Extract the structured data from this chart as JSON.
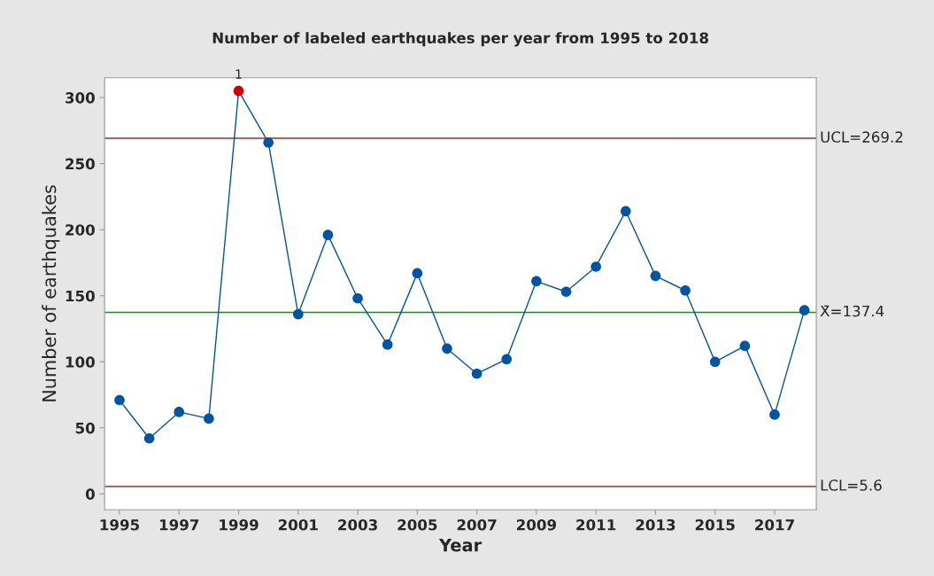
{
  "chart_data": {
    "type": "line",
    "title": "Number of labeled earthquakes per year from 1995 to 2018",
    "xlabel": "Year",
    "ylabel": "Number of earthquakes",
    "x": [
      1995,
      1996,
      1997,
      1998,
      1999,
      2000,
      2001,
      2002,
      2003,
      2004,
      2005,
      2006,
      2007,
      2008,
      2009,
      2010,
      2011,
      2012,
      2013,
      2014,
      2015,
      2016,
      2017,
      2018
    ],
    "series": [
      {
        "color": "#0054a6",
        "marker": "circle",
        "values": [
          71,
          42,
          62,
          57,
          305,
          266,
          136,
          196,
          148,
          113,
          167,
          110,
          91,
          102,
          161,
          153,
          172,
          214,
          165,
          154,
          100,
          112,
          60,
          139
        ],
        "colors": [
          "#0054a6",
          "#0054a6",
          "#0054a6",
          "#0054a6",
          "#d40000",
          "#0054a6",
          "#0054a6",
          "#0054a6",
          "#0054a6",
          "#0054a6",
          "#0054a6",
          "#0054a6",
          "#0054a6",
          "#0054a6",
          "#0054a6",
          "#0054a6",
          "#0054a6",
          "#0054a6",
          "#0054a6",
          "#0054a6",
          "#0054a6",
          "#0054a6",
          "#0054a6",
          "#0054a6"
        ]
      }
    ],
    "annotations": [
      {
        "text": "1",
        "x": 1999,
        "y": 305
      }
    ],
    "ref_lines": [
      {
        "axis": "y",
        "value": 269.2,
        "label": "UCL=269.2",
        "color": "#a52a2a"
      },
      {
        "axis": "y",
        "value": 137.4,
        "label": "X̄=137.4",
        "color": "#1a8a1a"
      },
      {
        "axis": "y",
        "value": 5.6,
        "label": "LCL=5.6",
        "color": "#a52a2a"
      }
    ],
    "xlim": [
      1994.5,
      2018.4
    ],
    "xticks": [
      1995,
      1997,
      1999,
      2001,
      2003,
      2005,
      2007,
      2009,
      2011,
      2013,
      2015,
      2017
    ],
    "ylim": [
      -12,
      315
    ],
    "yticks": [
      0,
      50,
      100,
      150,
      200,
      250,
      300
    ],
    "grid": false,
    "legend": false
  }
}
